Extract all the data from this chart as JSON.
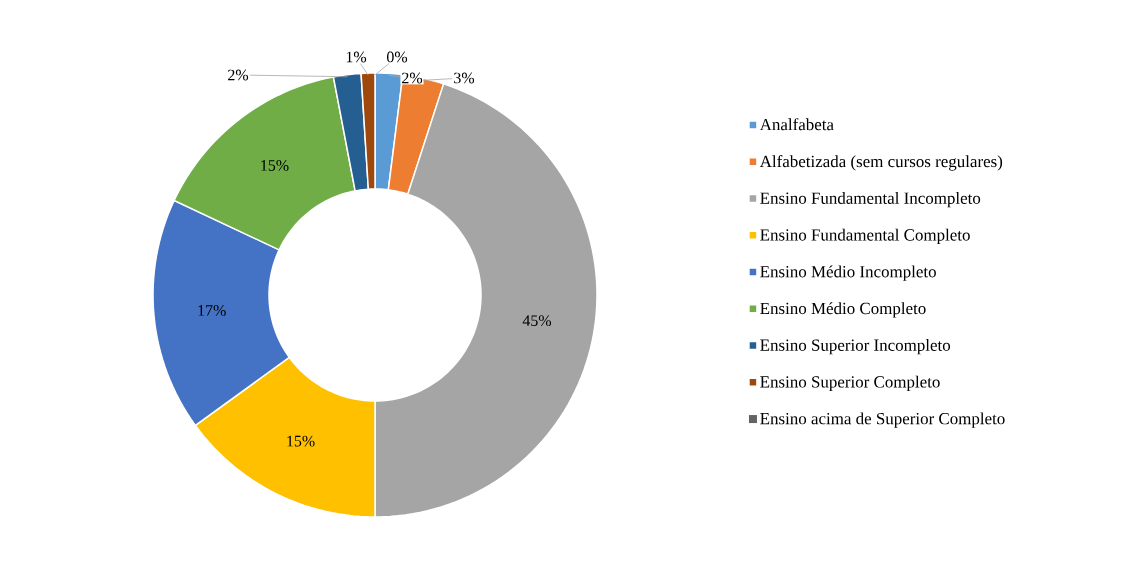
{
  "chart_data": {
    "type": "donut",
    "categories": [
      "Analfabeta",
      "Alfabetizada (sem cursos regulares)",
      "Ensino Fundamental Incompleto",
      "Ensino Fundamental Completo",
      "Ensino Médio Incompleto",
      "Ensino Médio Completo",
      "Ensino Superior Incompleto",
      "Ensino Superior Completo",
      "Ensino acima de Superior Completo"
    ],
    "values": [
      2,
      3,
      45,
      15,
      17,
      15,
      2,
      1,
      0
    ],
    "colors": [
      "#5b9bd5",
      "#ed7d31",
      "#a5a5a5",
      "#ffc000",
      "#4472c4",
      "#70ad47",
      "#255e91",
      "#9e480e",
      "#636363"
    ],
    "value_labels": [
      "2%",
      "3%",
      "45%",
      "15%",
      "17%",
      "15%",
      "2%",
      "1%",
      "0%"
    ],
    "legend": "right"
  }
}
